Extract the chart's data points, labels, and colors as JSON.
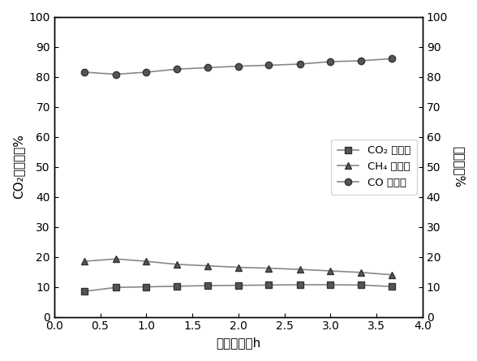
{
  "x": [
    0.33,
    0.67,
    1.0,
    1.33,
    1.67,
    2.0,
    2.33,
    2.67,
    3.0,
    3.33,
    3.67
  ],
  "co2_conversion": [
    8.5,
    9.8,
    10.0,
    10.2,
    10.4,
    10.5,
    10.6,
    10.7,
    10.7,
    10.6,
    10.1
  ],
  "ch4_selectivity": [
    18.5,
    19.3,
    18.5,
    17.5,
    17.0,
    16.5,
    16.2,
    15.8,
    15.3,
    14.8,
    14.0
  ],
  "co_selectivity": [
    81.5,
    80.8,
    81.5,
    82.5,
    83.0,
    83.5,
    83.8,
    84.2,
    85.0,
    85.3,
    86.0
  ],
  "xlim": [
    0.0,
    4.0
  ],
  "ylim_left": [
    0,
    100
  ],
  "ylim_right": [
    0,
    100
  ],
  "xticks": [
    0.0,
    0.5,
    1.0,
    1.5,
    2.0,
    2.5,
    3.0,
    3.5,
    4.0
  ],
  "yticks": [
    0,
    10,
    20,
    30,
    40,
    50,
    60,
    70,
    80,
    90,
    100
  ],
  "xlabel": "反应时间／h",
  "ylabel_left": "CO₂转化率／%",
  "ylabel_right": "选择性／%",
  "legend_labels": [
    "CO₂ 转化率",
    "CH₄ 选择性",
    "CO 选择性"
  ],
  "line_color": "#888888",
  "marker_square": "s",
  "marker_triangle": "^",
  "marker_circle": "o",
  "marker_facecolor": "#555555",
  "marker_edgecolor": "#333333",
  "marker_size": 6,
  "linewidth": 1.2,
  "legend_fontsize": 9.5,
  "tick_fontsize": 10,
  "label_fontsize": 11,
  "background_color": "#ffffff"
}
